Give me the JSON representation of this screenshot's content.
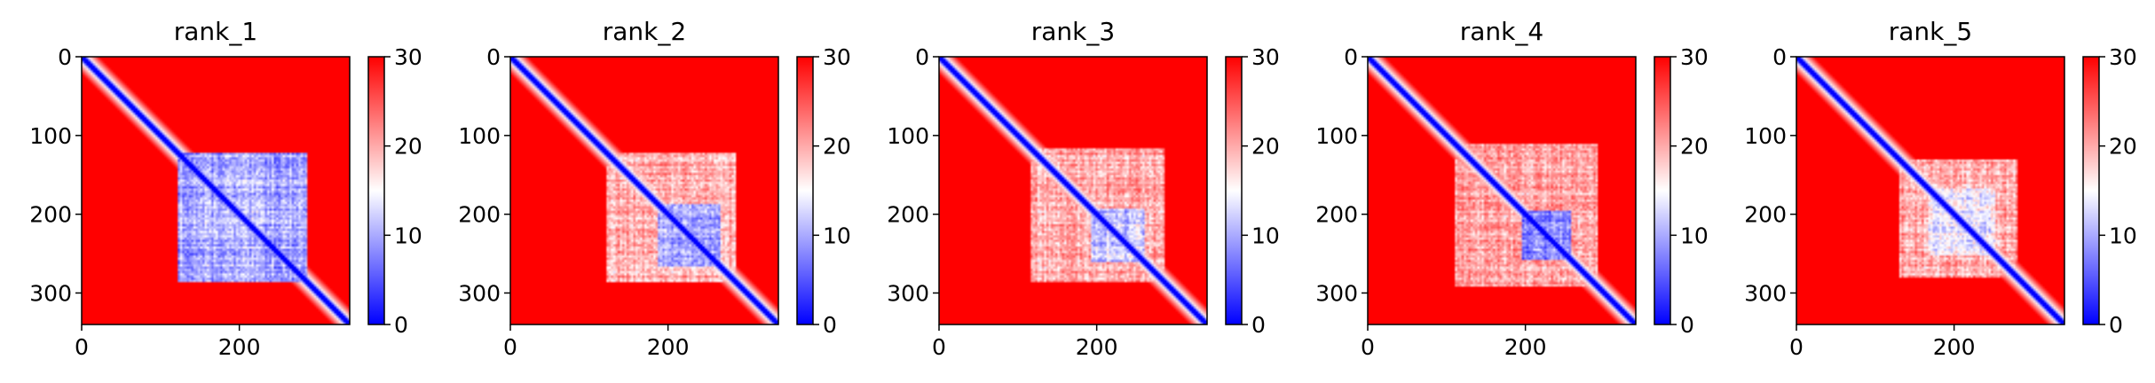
{
  "chart_data": [
    {
      "type": "heatmap",
      "title": "rank_1",
      "n": 340,
      "xticks": [
        0,
        200
      ],
      "yticks": [
        0,
        100,
        200,
        300
      ],
      "colorbar": {
        "min": 0,
        "max": 30,
        "ticks": [
          0,
          10,
          20,
          30
        ]
      },
      "colormap": "bwr",
      "low_error_blocks": [
        {
          "from": 120,
          "to": 285,
          "level": 10
        }
      ]
    },
    {
      "type": "heatmap",
      "title": "rank_2",
      "n": 340,
      "xticks": [
        0,
        200
      ],
      "yticks": [
        0,
        100,
        200,
        300
      ],
      "colorbar": {
        "min": 0,
        "max": 30,
        "ticks": [
          0,
          10,
          20,
          30
        ]
      },
      "colormap": "bwr",
      "low_error_blocks": [
        {
          "from": 120,
          "to": 285,
          "level": 20
        },
        {
          "from": 185,
          "to": 265,
          "level": 10
        }
      ]
    },
    {
      "type": "heatmap",
      "title": "rank_3",
      "n": 340,
      "xticks": [
        0,
        200
      ],
      "yticks": [
        0,
        100,
        200,
        300
      ],
      "colorbar": {
        "min": 0,
        "max": 30,
        "ticks": [
          0,
          10,
          20,
          30
        ]
      },
      "colormap": "bwr",
      "low_error_blocks": [
        {
          "from": 115,
          "to": 285,
          "level": 20
        },
        {
          "from": 190,
          "to": 260,
          "level": 12
        }
      ]
    },
    {
      "type": "heatmap",
      "title": "rank_4",
      "n": 340,
      "xticks": [
        0,
        200
      ],
      "yticks": [
        0,
        100,
        200,
        300
      ],
      "colorbar": {
        "min": 0,
        "max": 30,
        "ticks": [
          0,
          10,
          20,
          30
        ]
      },
      "colormap": "bwr",
      "low_error_blocks": [
        {
          "from": 110,
          "to": 290,
          "level": 20
        },
        {
          "from": 195,
          "to": 255,
          "level": 8
        }
      ]
    },
    {
      "type": "heatmap",
      "title": "rank_5",
      "n": 340,
      "xticks": [
        0,
        200
      ],
      "yticks": [
        0,
        100,
        200,
        300
      ],
      "colorbar": {
        "min": 0,
        "max": 30,
        "ticks": [
          0,
          10,
          20,
          30
        ]
      },
      "colormap": "bwr",
      "low_error_blocks": [
        {
          "from": 130,
          "to": 280,
          "level": 20
        },
        {
          "from": 165,
          "to": 250,
          "level": 14
        }
      ]
    }
  ]
}
